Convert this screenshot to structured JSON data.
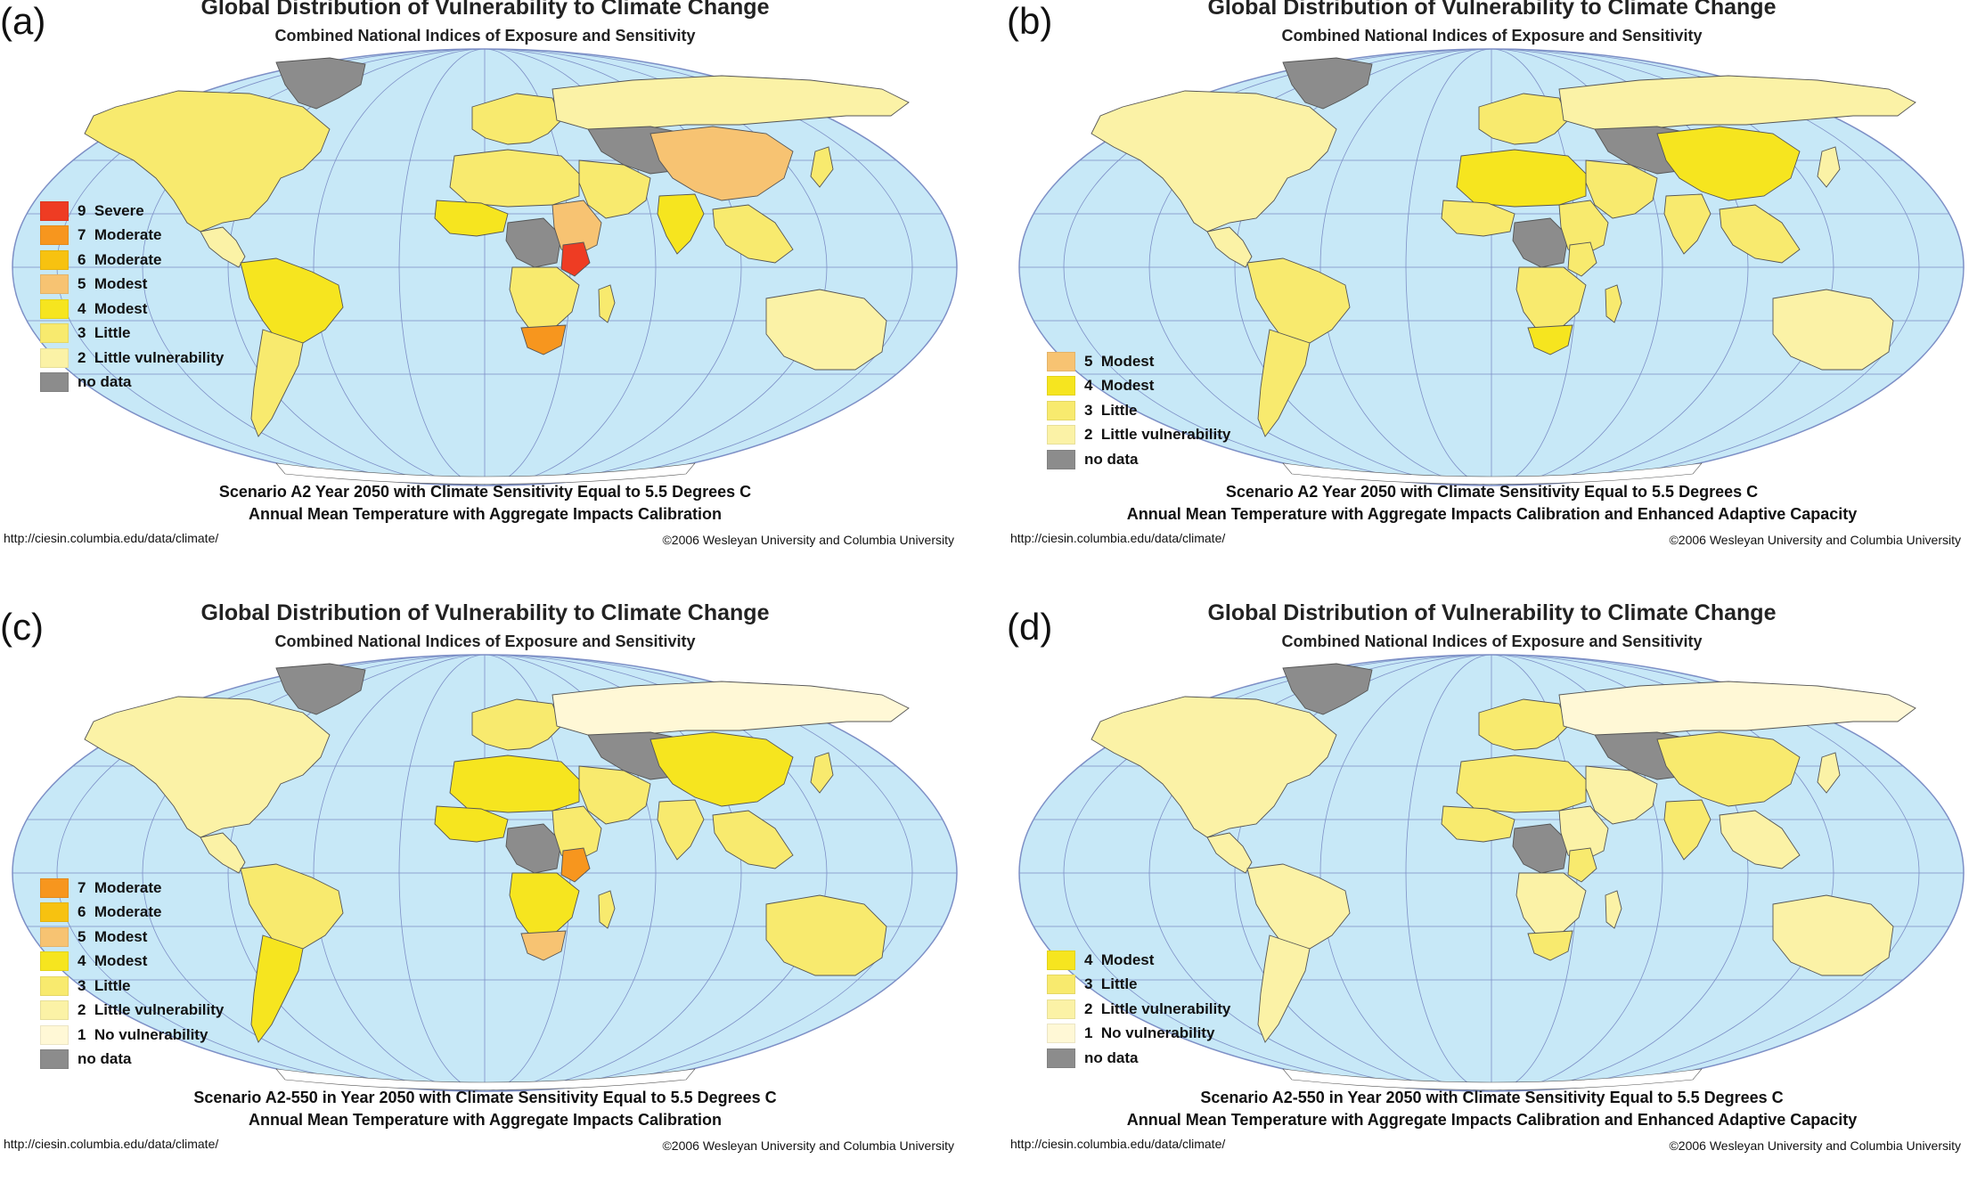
{
  "colors": {
    "ocean": "#c7e8f7",
    "graticule": "#7d8fc6",
    "border": "#555555",
    "no_data": "#8c8c8c",
    "level_1": "#fff8d6",
    "level_2": "#fbf2a6",
    "level_3": "#f8ea6e",
    "level_4": "#f6e51f",
    "level_5": "#f7c372",
    "level_6": "#f7c210",
    "level_7": "#f7961e",
    "level_9": "#ee3c23"
  },
  "panels": [
    {
      "letter": "(a)",
      "title": "Global Distribution of Vulnerability to Climate Change",
      "subtitle": "Combined National Indices of Exposure and Sensitivity",
      "legend": [
        {
          "label": "9  Severe",
          "color": "#ee3c23"
        },
        {
          "label": "7  Moderate",
          "color": "#f7961e"
        },
        {
          "label": "6  Moderate",
          "color": "#f7c210"
        },
        {
          "label": "5  Modest",
          "color": "#f7c372"
        },
        {
          "label": "4  Modest",
          "color": "#f6e51f"
        },
        {
          "label": "3  Little",
          "color": "#f8ea6e"
        },
        {
          "label": "2  Little vulnerability",
          "color": "#fbf2a6"
        },
        {
          "label": "no data",
          "color": "#8c8c8c"
        }
      ],
      "caption_line1": "Scenario A2 Year 2050 with Climate Sensitivity Equal to 5.5 Degrees C",
      "caption_line2": "Annual Mean Temperature with Aggregate Impacts Calibration",
      "url": "http://ciesin.columbia.edu/data/climate/",
      "copyright": "©2006 Wesleyan University and Columbia University",
      "regions": {
        "north_america": "#f8ea6e",
        "central_america": "#fbf2a6",
        "south_america_north": "#f6e51f",
        "south_america_south": "#f8ea6e",
        "greenland": "#8c8c8c",
        "europe": "#f8ea6e",
        "russia": "#fbf2a6",
        "central_asia": "#8c8c8c",
        "china": "#f7c372",
        "india": "#f6e51f",
        "middle_east": "#f8ea6e",
        "north_africa": "#f8ea6e",
        "west_africa": "#f6e51f",
        "central_africa": "#8c8c8c",
        "east_africa": "#f7c372",
        "kenya": "#ee3c23",
        "southern_africa": "#f8ea6e",
        "south_africa": "#f7961e",
        "madagascar": "#f8ea6e",
        "southeast_asia": "#f8ea6e",
        "australia": "#fbf2a6",
        "japan": "#f8ea6e"
      }
    },
    {
      "letter": "(b)",
      "title": "Global Distribution of Vulnerability to Climate Change",
      "subtitle": "Combined National Indices of Exposure and Sensitivity",
      "legend": [
        {
          "label": "5  Modest",
          "color": "#f7c372"
        },
        {
          "label": "4  Modest",
          "color": "#f6e51f"
        },
        {
          "label": "3  Little",
          "color": "#f8ea6e"
        },
        {
          "label": "2  Little vulnerability",
          "color": "#fbf2a6"
        },
        {
          "label": "no data",
          "color": "#8c8c8c"
        }
      ],
      "caption_line1": "Scenario A2 Year 2050 with Climate Sensitivity Equal to 5.5 Degrees C",
      "caption_line2": "Annual Mean Temperature with Aggregate Impacts Calibration and Enhanced Adaptive Capacity",
      "url": "http://ciesin.columbia.edu/data/climate/",
      "copyright": "©2006 Wesleyan University and Columbia University",
      "regions": {
        "north_america": "#fbf2a6",
        "central_america": "#fbf2a6",
        "south_america_north": "#f8ea6e",
        "south_america_south": "#f8ea6e",
        "greenland": "#8c8c8c",
        "europe": "#f8ea6e",
        "russia": "#fbf2a6",
        "central_asia": "#8c8c8c",
        "china": "#f6e51f",
        "india": "#f8ea6e",
        "middle_east": "#f8ea6e",
        "north_africa": "#f6e51f",
        "west_africa": "#f8ea6e",
        "central_africa": "#8c8c8c",
        "east_africa": "#f8ea6e",
        "kenya": "#f8ea6e",
        "southern_africa": "#f8ea6e",
        "south_africa": "#f6e51f",
        "madagascar": "#f8ea6e",
        "southeast_asia": "#f8ea6e",
        "australia": "#fbf2a6",
        "japan": "#fbf2a6"
      }
    },
    {
      "letter": "(c)",
      "title": "Global Distribution of Vulnerability to Climate Change",
      "subtitle": "Combined National Indices of Exposure and Sensitivity",
      "legend": [
        {
          "label": "7  Moderate",
          "color": "#f7961e"
        },
        {
          "label": "6  Moderate",
          "color": "#f7c210"
        },
        {
          "label": "5  Modest",
          "color": "#f7c372"
        },
        {
          "label": "4  Modest",
          "color": "#f6e51f"
        },
        {
          "label": "3  Little",
          "color": "#f8ea6e"
        },
        {
          "label": "2  Little vulnerability",
          "color": "#fbf2a6"
        },
        {
          "label": "1  No vulnerability",
          "color": "#fff8d6"
        },
        {
          "label": "no data",
          "color": "#8c8c8c"
        }
      ],
      "caption_line1": "Scenario A2-550 in Year 2050 with Climate Sensitivity Equal to 5.5 Degrees C",
      "caption_line2": "Annual Mean Temperature with Aggregate Impacts Calibration",
      "url": "http://ciesin.columbia.edu/data/climate/",
      "copyright": "©2006 Wesleyan University and Columbia University",
      "regions": {
        "north_america": "#fbf2a6",
        "central_america": "#fbf2a6",
        "south_america_north": "#f8ea6e",
        "south_america_south": "#f6e51f",
        "greenland": "#8c8c8c",
        "europe": "#f8ea6e",
        "russia": "#fff8d6",
        "central_asia": "#8c8c8c",
        "china": "#f6e51f",
        "india": "#f8ea6e",
        "middle_east": "#f8ea6e",
        "north_africa": "#f6e51f",
        "west_africa": "#f6e51f",
        "central_africa": "#8c8c8c",
        "east_africa": "#f8ea6e",
        "kenya": "#f7961e",
        "southern_africa": "#f6e51f",
        "south_africa": "#f7c372",
        "madagascar": "#f8ea6e",
        "southeast_asia": "#f8ea6e",
        "australia": "#f8ea6e",
        "japan": "#f8ea6e"
      }
    },
    {
      "letter": "(d)",
      "title": "Global Distribution of Vulnerability to Climate Change",
      "subtitle": "Combined National Indices of Exposure and Sensitivity",
      "legend": [
        {
          "label": "4  Modest",
          "color": "#f6e51f"
        },
        {
          "label": "3  Little",
          "color": "#f8ea6e"
        },
        {
          "label": "2  Little vulnerability",
          "color": "#fbf2a6"
        },
        {
          "label": "1  No vulnerability",
          "color": "#fff8d6"
        },
        {
          "label": "no data",
          "color": "#8c8c8c"
        }
      ],
      "caption_line1": "Scenario A2-550 in Year 2050 with Climate Sensitivity Equal to 5.5 Degrees C",
      "caption_line2": "Annual Mean Temperature with Aggregate Impacts Calibration and Enhanced Adaptive Capacity",
      "url": "http://ciesin.columbia.edu/data/climate/",
      "copyright": "©2006 Wesleyan University and Columbia University",
      "regions": {
        "north_america": "#fbf2a6",
        "central_america": "#fbf2a6",
        "south_america_north": "#fbf2a6",
        "south_america_south": "#fbf2a6",
        "greenland": "#8c8c8c",
        "europe": "#f8ea6e",
        "russia": "#fff8d6",
        "central_asia": "#8c8c8c",
        "china": "#f8ea6e",
        "india": "#f8ea6e",
        "middle_east": "#fbf2a6",
        "north_africa": "#f8ea6e",
        "west_africa": "#f8ea6e",
        "central_africa": "#8c8c8c",
        "east_africa": "#fbf2a6",
        "kenya": "#f8ea6e",
        "southern_africa": "#fbf2a6",
        "south_africa": "#f8ea6e",
        "madagascar": "#fbf2a6",
        "southeast_asia": "#fbf2a6",
        "australia": "#fbf2a6",
        "japan": "#fbf2a6"
      }
    }
  ]
}
